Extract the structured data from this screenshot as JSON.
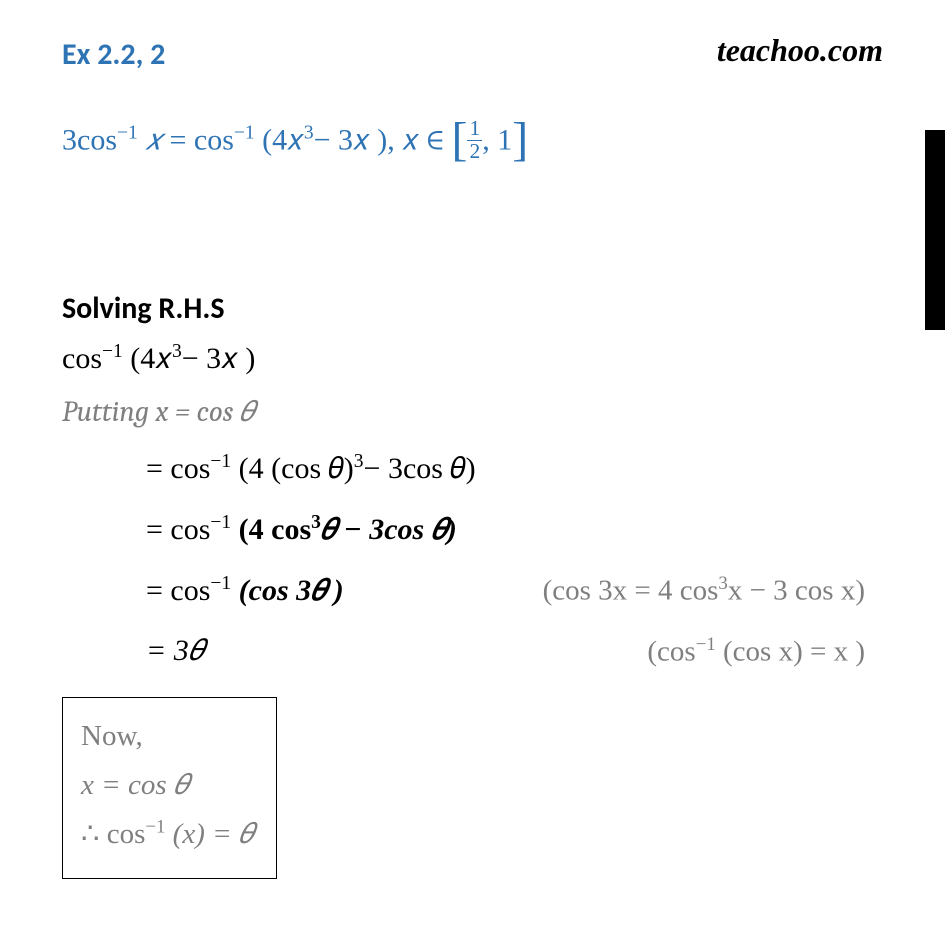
{
  "header": {
    "title": "Ex 2.2, 2",
    "brand": "teachoo.com"
  },
  "problem": {
    "lhs": "3cos",
    "sup1": "−1",
    "var1": " 𝑥 ",
    "eq": "= cos",
    "sup2": "−1",
    "mid": " (4𝑥",
    "sup3": "3",
    "after": "− 3𝑥 ), 𝑥 ∈ ",
    "frac_n": "1",
    "frac_d": "2",
    "close": ", 1"
  },
  "solving_label": "Solving R.H.S",
  "rhs_expr": {
    "a": "cos",
    "sup1": "−1",
    "b": " (4𝑥",
    "sup2": "3",
    "c": "− 3𝑥 )"
  },
  "putting": "Putting x = cos 𝜃",
  "steps": [
    {
      "a": "= cos",
      "sup1": "−1",
      "b": " (4 (cos 𝜃)",
      "sup2": "3",
      "c": "− 3cos 𝜃)"
    },
    {
      "a": "= cos",
      "sup1": "−1",
      "b_bold": " (4 cos",
      "sup2": "3",
      "c_bold": "𝜃 − 3cos 𝜃)"
    },
    {
      "a": "= cos",
      "sup1": "−1",
      "b_bold": " (cos 3𝜃 )",
      "hint_a": "(cos 3x = 4 cos",
      "hint_sup": "3",
      "hint_b": "x − 3 cos x)"
    },
    {
      "a": "= 3𝜃",
      "hint_a": "(cos",
      "hint_sup": "−1",
      "hint_b": " (cos x) = x )"
    }
  ],
  "now_box": {
    "l1": "Now,",
    "l2": "x = cos 𝜃",
    "l3a": "∴  cos",
    "l3sup": "−1",
    "l3b": " (x) = 𝜃"
  },
  "colors": {
    "accent": "#2e74b5",
    "grey": "#7f7f7f",
    "text": "#000000",
    "bg": "#ffffff"
  }
}
